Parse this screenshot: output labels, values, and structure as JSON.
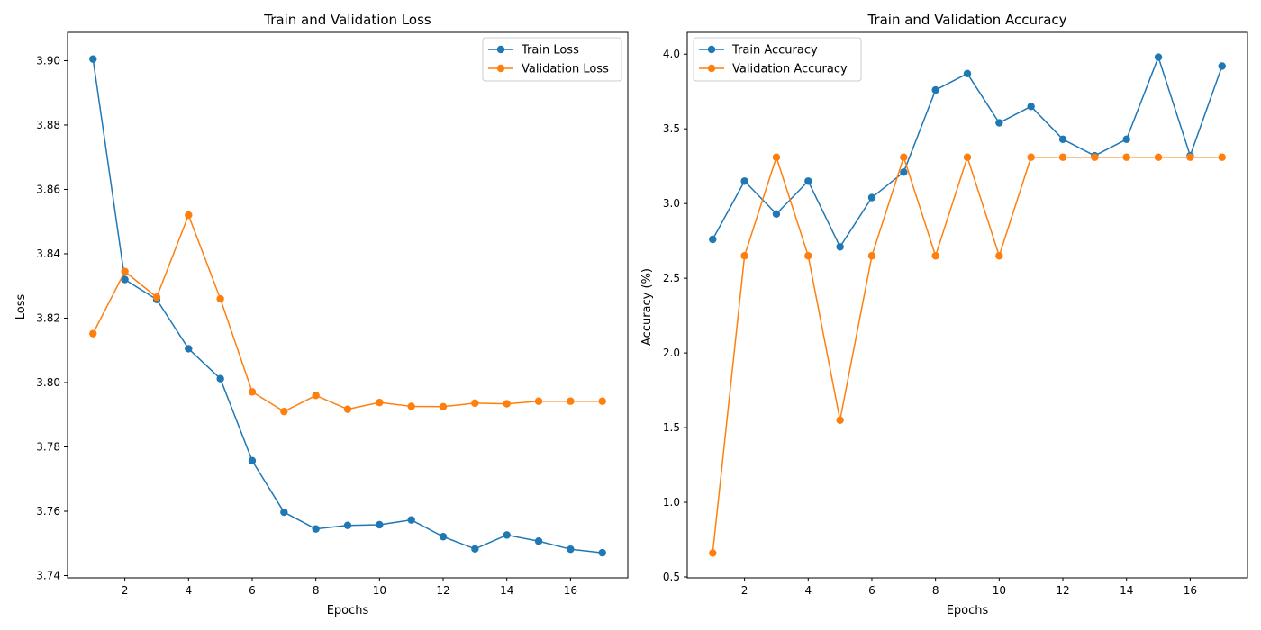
{
  "chart_data": [
    {
      "type": "line",
      "title": "Train and Validation Loss",
      "xlabel": "Epochs",
      "ylabel": "Loss",
      "xlim": [
        0.2,
        17.8
      ],
      "ylim": [
        3.7393,
        3.9088
      ],
      "xticks": [
        2,
        4,
        6,
        8,
        10,
        12,
        14,
        16
      ],
      "yticks": [
        3.74,
        3.76,
        3.78,
        3.8,
        3.82,
        3.84,
        3.86,
        3.88,
        3.9
      ],
      "ytick_decimals": 2,
      "legend": "top-right",
      "grid": false,
      "x": [
        1,
        2,
        3,
        4,
        5,
        6,
        7,
        8,
        9,
        10,
        11,
        12,
        13,
        14,
        15,
        16,
        17
      ],
      "series": [
        {
          "name": "Train Loss",
          "color": "#1f77b4",
          "values": [
            3.9005,
            3.832,
            3.8258,
            3.8105,
            3.8012,
            3.7757,
            3.7597,
            3.7545,
            3.7556,
            3.7558,
            3.7573,
            3.7521,
            3.7483,
            3.7526,
            3.7507,
            3.7482,
            3.7471
          ]
        },
        {
          "name": "Validation Loss",
          "color": "#ff7f0e",
          "values": [
            3.8152,
            3.8345,
            3.8265,
            3.852,
            3.826,
            3.7971,
            3.791,
            3.796,
            3.7917,
            3.7938,
            3.7926,
            3.7925,
            3.7936,
            3.7934,
            3.7942,
            3.7942,
            3.7942
          ]
        }
      ]
    },
    {
      "type": "line",
      "title": "Train and Validation Accuracy",
      "xlabel": "Epochs",
      "ylabel": "Accuracy (%)",
      "xlim": [
        0.2,
        17.8
      ],
      "ylim": [
        0.494,
        4.146
      ],
      "xticks": [
        2,
        4,
        6,
        8,
        10,
        12,
        14,
        16
      ],
      "yticks": [
        0.5,
        1.0,
        1.5,
        2.0,
        2.5,
        3.0,
        3.5,
        4.0
      ],
      "ytick_decimals": 1,
      "legend": "top-left",
      "grid": false,
      "x": [
        1,
        2,
        3,
        4,
        5,
        6,
        7,
        8,
        9,
        10,
        11,
        12,
        13,
        14,
        15,
        16,
        17
      ],
      "series": [
        {
          "name": "Train Accuracy",
          "color": "#1f77b4",
          "values": [
            2.76,
            3.15,
            2.93,
            3.15,
            2.71,
            3.04,
            3.21,
            3.76,
            3.87,
            3.54,
            3.65,
            3.43,
            3.32,
            3.43,
            3.98,
            3.32,
            3.92
          ]
        },
        {
          "name": "Validation Accuracy",
          "color": "#ff7f0e",
          "values": [
            0.66,
            2.65,
            3.31,
            2.65,
            1.55,
            2.65,
            3.31,
            2.65,
            3.31,
            2.65,
            3.31,
            3.31,
            3.31,
            3.31,
            3.31,
            3.31,
            3.31
          ]
        }
      ]
    }
  ]
}
